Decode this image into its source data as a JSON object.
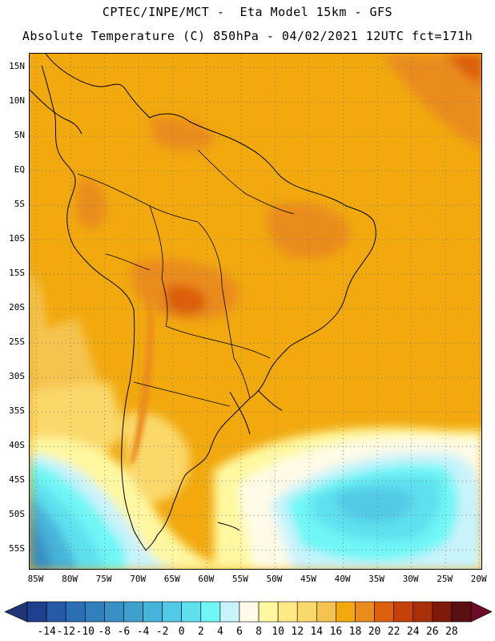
{
  "header": {
    "line1": "CPTEC/INPE/MCT -  Eta Model 15km - GFS",
    "line2": "Absolute Temperature (C) 850hPa - 04/02/2021 12UTC fct=171h"
  },
  "map": {
    "lon_range": [
      -86,
      -19.5
    ],
    "lat_range": [
      17,
      -58
    ],
    "lat_labels": [
      {
        "text": "15N",
        "lat": 15
      },
      {
        "text": "10N",
        "lat": 10
      },
      {
        "text": "5N",
        "lat": 5
      },
      {
        "text": "EQ",
        "lat": 0
      },
      {
        "text": "5S",
        "lat": -5
      },
      {
        "text": "10S",
        "lat": -10
      },
      {
        "text": "15S",
        "lat": -15
      },
      {
        "text": "20S",
        "lat": -20
      },
      {
        "text": "25S",
        "lat": -25
      },
      {
        "text": "30S",
        "lat": -30
      },
      {
        "text": "35S",
        "lat": -35
      },
      {
        "text": "40S",
        "lat": -40
      },
      {
        "text": "45S",
        "lat": -45
      },
      {
        "text": "50S",
        "lat": -50
      },
      {
        "text": "55S",
        "lat": -55
      }
    ],
    "lon_labels": [
      {
        "text": "85W",
        "lon": -85
      },
      {
        "text": "80W",
        "lon": -80
      },
      {
        "text": "75W",
        "lon": -75
      },
      {
        "text": "70W",
        "lon": -70
      },
      {
        "text": "65W",
        "lon": -65
      },
      {
        "text": "60W",
        "lon": -60
      },
      {
        "text": "55W",
        "lon": -55
      },
      {
        "text": "50W",
        "lon": -50
      },
      {
        "text": "45W",
        "lon": -45
      },
      {
        "text": "40W",
        "lon": -40
      },
      {
        "text": "35W",
        "lon": -35
      },
      {
        "text": "30W",
        "lon": -30
      },
      {
        "text": "25W",
        "lon": -25
      },
      {
        "text": "20W",
        "lon": -20
      }
    ]
  },
  "colorbar": {
    "unit": "C",
    "labels": [
      "-14",
      "-12",
      "-10",
      "-8",
      "-6",
      "-4",
      "-2",
      "0",
      "2",
      "4",
      "6",
      "8",
      "10",
      "12",
      "14",
      "16",
      "18",
      "20",
      "22",
      "24",
      "26",
      "28"
    ],
    "colors": [
      "#1f3f8f",
      "#255aa6",
      "#2b6eb5",
      "#3180bd",
      "#3890c4",
      "#3ea0cc",
      "#46b3d9",
      "#52c9e6",
      "#5ee0ee",
      "#70f6f6",
      "#c9f3fb",
      "#fffbe6",
      "#fff8a0",
      "#fee986",
      "#fbd86a",
      "#f5c44f",
      "#f1a90e",
      "#ea8c1d",
      "#dd5f0f",
      "#c4420a",
      "#a82f07",
      "#7d1a0a",
      "#5a1010"
    ],
    "low_color": "#1f3575",
    "high_color": "#6a0c26"
  }
}
